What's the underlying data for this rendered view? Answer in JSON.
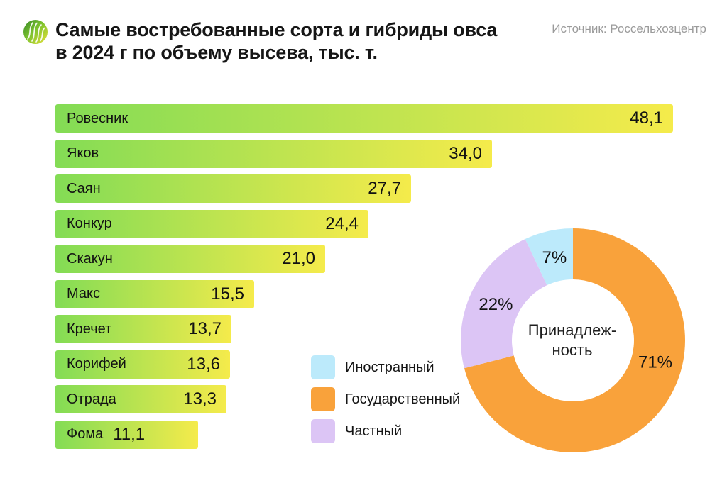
{
  "header": {
    "logo": "agro-sprout-logo",
    "title_line1": "Самые востребованные сорта и гибриды овса",
    "title_line2": "в 2024 г по объему высева, тыс. т.",
    "source": "Источник: Россельхозцентр"
  },
  "colors": {
    "bar_gradient_start": "#83DC55",
    "bar_gradient_end": "#F5EB4B",
    "state_orange": "#F9A23B",
    "private_purple": "#DCC5F5",
    "foreign_blue": "#BCEAFB",
    "text": "#161616",
    "source_text": "#9B9B9B"
  },
  "chart_data": [
    {
      "type": "bar",
      "orientation": "horizontal",
      "title": "Самые востребованные сорта и гибриды овса в 2024 г по объему высева, тыс. т.",
      "unit": "тыс. т",
      "categories": [
        "Ровесник",
        "Яков",
        "Саян",
        "Конкур",
        "Скакун",
        "Макс",
        "Кречет",
        "Корифей",
        "Отрада",
        "Фома"
      ],
      "values": [
        48.1,
        34.0,
        27.7,
        24.4,
        21.0,
        15.5,
        13.7,
        13.6,
        13.3,
        11.1
      ],
      "value_labels": [
        "48,1",
        "34,0",
        "27,7",
        "24,4",
        "21,0",
        "15,5",
        "13,7",
        "13,6",
        "13,3",
        "11,1"
      ],
      "xlim": [
        0,
        48.1
      ],
      "grid": false,
      "bar_colors": [
        "#83DC55",
        "#F5EB4B"
      ]
    },
    {
      "type": "pie",
      "subtype": "donut",
      "center_label": [
        "Принадлеж-",
        "ность"
      ],
      "slices": [
        {
          "label": "Государственный",
          "value": 71,
          "display": "71%",
          "color": "#F9A23B"
        },
        {
          "label": "Частный",
          "value": 22,
          "display": "22%",
          "color": "#DCC5F5"
        },
        {
          "label": "Иностранный",
          "value": 7,
          "display": "7%",
          "color": "#BCEAFB"
        }
      ],
      "legend": [
        {
          "label": "Иностранный",
          "color": "#BCEAFB"
        },
        {
          "label": "Государственный",
          "color": "#F9A23B"
        },
        {
          "label": "Частный",
          "color": "#DCC5F5"
        }
      ],
      "legend_position": "left-of-donut"
    }
  ]
}
